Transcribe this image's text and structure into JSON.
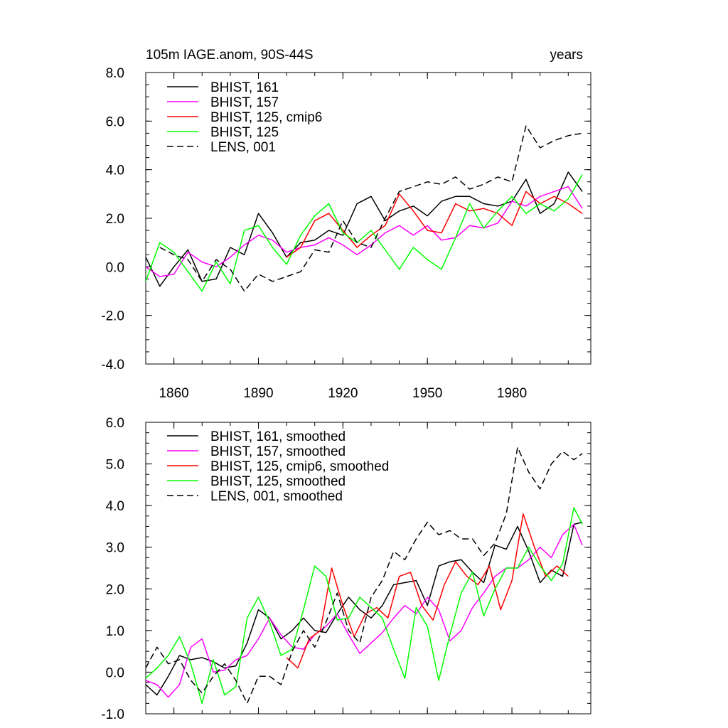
{
  "chart_data": [
    {
      "type": "line",
      "title_left": "105m IAGE.anom, 90S-44S",
      "title_right": "years",
      "xlim": [
        1850,
        2008
      ],
      "ylim": [
        -4.0,
        8.0
      ],
      "yticks": [
        -4.0,
        -2.0,
        0.0,
        2.0,
        4.0,
        6.0,
        8.0
      ],
      "ytick_labels": [
        "-4.0",
        "-2.0",
        "0.0",
        "2.0",
        "4.0",
        "6.0",
        "8.0"
      ],
      "xticks": [
        1860,
        1890,
        1920,
        1950,
        1980
      ],
      "xtick_labels": [
        "1860",
        "1890",
        "1920",
        "1950",
        "1980"
      ],
      "legend_position": "top-left",
      "series": [
        {
          "name": "BHIST, 161",
          "color": "#000000",
          "dash": "solid",
          "x": [
            1850,
            1855,
            1860,
            1865,
            1870,
            1875,
            1880,
            1885,
            1890,
            1895,
            1900,
            1905,
            1910,
            1915,
            1920,
            1925,
            1930,
            1935,
            1940,
            1945,
            1950,
            1955,
            1960,
            1965,
            1970,
            1975,
            1980,
            1985,
            1990,
            1995,
            2000,
            2005
          ],
          "values": [
            0.4,
            -0.8,
            0.0,
            0.7,
            -0.6,
            -0.5,
            0.8,
            0.5,
            2.2,
            1.4,
            0.4,
            1.0,
            1.1,
            1.5,
            1.3,
            2.6,
            2.9,
            1.9,
            2.3,
            2.5,
            2.1,
            2.7,
            2.9,
            2.9,
            2.6,
            2.5,
            2.7,
            3.6,
            2.2,
            2.6,
            3.9,
            3.1
          ]
        },
        {
          "name": "BHIST, 157",
          "color": "#ff00ff",
          "dash": "solid",
          "x": [
            1850,
            1855,
            1860,
            1865,
            1870,
            1875,
            1880,
            1885,
            1890,
            1895,
            1900,
            1905,
            1910,
            1915,
            1920,
            1925,
            1930,
            1935,
            1940,
            1945,
            1950,
            1955,
            1960,
            1965,
            1970,
            1975,
            1980,
            1985,
            1990,
            1995,
            2000,
            2005
          ],
          "values": [
            0.0,
            -0.4,
            -0.3,
            0.6,
            0.2,
            0.0,
            0.4,
            0.9,
            1.3,
            1.1,
            0.6,
            0.8,
            0.9,
            1.2,
            0.9,
            0.5,
            0.9,
            1.4,
            1.7,
            1.3,
            1.7,
            1.1,
            1.2,
            1.7,
            1.6,
            1.8,
            2.7,
            2.5,
            2.9,
            3.1,
            3.3,
            2.4
          ]
        },
        {
          "name": "BHIST, 125, cmip6",
          "color": "#ff0000",
          "dash": "solid",
          "x": [
            1900,
            1905,
            1910,
            1915,
            1920,
            1925,
            1930,
            1935,
            1940,
            1945,
            1950,
            1955,
            1960,
            1965,
            1970,
            1975,
            1980,
            1985,
            1990,
            1995,
            2000,
            2005
          ],
          "values": [
            0.4,
            0.8,
            1.9,
            2.2,
            1.5,
            0.8,
            1.3,
            1.7,
            3.0,
            2.3,
            1.5,
            1.4,
            2.6,
            2.3,
            2.4,
            2.2,
            1.7,
            3.1,
            2.6,
            2.9,
            2.6,
            2.2
          ]
        },
        {
          "name": "BHIST, 125",
          "color": "#00ff00",
          "dash": "solid",
          "x": [
            1850,
            1855,
            1860,
            1865,
            1870,
            1875,
            1880,
            1885,
            1890,
            1895,
            1900,
            1905,
            1910,
            1915,
            1920,
            1925,
            1930,
            1935,
            1940,
            1945,
            1950,
            1955,
            1960,
            1965,
            1970,
            1975,
            1980,
            1985,
            1990,
            1995,
            2000,
            2005
          ],
          "values": [
            -0.6,
            1.0,
            0.6,
            -0.2,
            -1.0,
            0.2,
            -0.7,
            1.5,
            1.7,
            0.8,
            0.1,
            1.3,
            2.1,
            2.6,
            1.4,
            1.0,
            1.5,
            0.7,
            -0.1,
            0.8,
            0.3,
            -0.1,
            1.2,
            2.6,
            1.6,
            2.3,
            2.9,
            2.2,
            2.6,
            2.3,
            2.8,
            3.8
          ]
        },
        {
          "name": "LENS, 001",
          "color": "#000000",
          "dash": "dashed",
          "x": [
            1855,
            1860,
            1865,
            1870,
            1875,
            1880,
            1885,
            1890,
            1895,
            1900,
            1905,
            1910,
            1915,
            1920,
            1925,
            1930,
            1935,
            1940,
            1945,
            1950,
            1955,
            1960,
            1965,
            1970,
            1975,
            1980,
            1985,
            1990,
            1995,
            2000,
            2005
          ],
          "values": [
            0.8,
            0.5,
            0.3,
            -0.6,
            0.3,
            -0.1,
            -1.0,
            -0.3,
            -0.6,
            -0.4,
            -0.2,
            0.7,
            0.6,
            1.9,
            1.0,
            0.8,
            2.0,
            3.1,
            3.3,
            3.5,
            3.4,
            3.7,
            3.2,
            3.4,
            3.7,
            3.5,
            5.8,
            4.9,
            5.2,
            5.4,
            5.5
          ]
        }
      ]
    },
    {
      "type": "line",
      "xlim": [
        1850,
        2008
      ],
      "ylim": [
        -1.0,
        6.0
      ],
      "yticks": [
        -1.0,
        0.0,
        1.0,
        2.0,
        3.0,
        4.0,
        5.0,
        6.0
      ],
      "ytick_labels": [
        "-1.0",
        "0.0",
        "1.0",
        "2.0",
        "3.0",
        "4.0",
        "5.0",
        "6.0"
      ],
      "xticks": [
        1860,
        1890,
        1920,
        1950,
        1980
      ],
      "legend_position": "top-left",
      "series": [
        {
          "name": "BHIST, 161, smoothed",
          "color": "#000000",
          "dash": "solid",
          "x": [
            1850,
            1854,
            1858,
            1862,
            1866,
            1870,
            1874,
            1878,
            1882,
            1886,
            1890,
            1894,
            1898,
            1902,
            1906,
            1910,
            1914,
            1918,
            1922,
            1926,
            1930,
            1934,
            1938,
            1942,
            1946,
            1950,
            1954,
            1958,
            1962,
            1966,
            1970,
            1974,
            1978,
            1982,
            1986,
            1990,
            1994,
            1998,
            2002,
            2005
          ],
          "values": [
            -0.3,
            -0.55,
            -0.1,
            0.4,
            0.3,
            0.35,
            0.25,
            0.1,
            0.15,
            0.7,
            1.5,
            1.3,
            0.8,
            1.0,
            1.3,
            1.0,
            0.95,
            1.4,
            1.8,
            1.5,
            1.3,
            1.6,
            2.1,
            2.15,
            2.2,
            1.6,
            2.55,
            2.65,
            2.7,
            2.4,
            2.15,
            3.05,
            2.95,
            3.5,
            2.9,
            2.15,
            2.45,
            2.3,
            3.55,
            3.6
          ]
        },
        {
          "name": "BHIST, 157, smoothed",
          "color": "#ff00ff",
          "dash": "solid",
          "x": [
            1850,
            1854,
            1858,
            1862,
            1866,
            1870,
            1874,
            1878,
            1882,
            1886,
            1890,
            1894,
            1898,
            1902,
            1906,
            1910,
            1914,
            1918,
            1922,
            1926,
            1930,
            1934,
            1938,
            1942,
            1946,
            1950,
            1954,
            1958,
            1962,
            1966,
            1970,
            1974,
            1978,
            1982,
            1986,
            1990,
            1994,
            1998,
            2002,
            2005
          ],
          "values": [
            -0.2,
            -0.3,
            -0.6,
            -0.3,
            0.6,
            0.8,
            0.0,
            0.05,
            0.3,
            0.4,
            0.8,
            1.3,
            0.9,
            0.6,
            0.55,
            0.9,
            1.1,
            1.4,
            0.9,
            0.45,
            0.7,
            0.95,
            1.3,
            1.6,
            1.4,
            1.8,
            1.5,
            0.75,
            1.0,
            1.55,
            1.9,
            2.3,
            2.5,
            2.5,
            2.7,
            3.0,
            2.75,
            3.3,
            3.55,
            3.05
          ]
        },
        {
          "name": "BHIST, 125, cmip6, smoothed",
          "color": "#ff0000",
          "dash": "solid",
          "x": [
            1900,
            1904,
            1908,
            1912,
            1916,
            1920,
            1924,
            1928,
            1932,
            1936,
            1940,
            1944,
            1948,
            1952,
            1956,
            1960,
            1964,
            1968,
            1972,
            1976,
            1980,
            1984,
            1988,
            1992,
            1996,
            2000
          ],
          "values": [
            0.35,
            0.1,
            0.8,
            1.0,
            2.5,
            1.6,
            0.85,
            1.4,
            1.55,
            1.3,
            2.3,
            2.4,
            1.6,
            1.25,
            2.1,
            2.65,
            2.3,
            2.1,
            2.55,
            1.5,
            2.2,
            3.8,
            3.0,
            2.3,
            2.55,
            2.3
          ]
        },
        {
          "name": "BHIST, 125, smoothed",
          "color": "#00ff00",
          "dash": "solid",
          "x": [
            1850,
            1854,
            1858,
            1862,
            1866,
            1870,
            1874,
            1878,
            1882,
            1886,
            1890,
            1894,
            1898,
            1902,
            1906,
            1910,
            1914,
            1918,
            1922,
            1926,
            1930,
            1934,
            1938,
            1942,
            1946,
            1950,
            1954,
            1958,
            1962,
            1966,
            1970,
            1974,
            1978,
            1982,
            1986,
            1990,
            1994,
            1998,
            2002,
            2005
          ],
          "values": [
            -0.15,
            0.1,
            0.4,
            0.85,
            0.2,
            -0.75,
            0.3,
            -0.55,
            -0.35,
            1.3,
            1.8,
            1.2,
            0.4,
            0.55,
            1.5,
            2.55,
            2.3,
            1.25,
            1.3,
            1.8,
            1.55,
            1.3,
            0.55,
            -0.15,
            1.55,
            1.1,
            -0.2,
            0.9,
            1.9,
            2.4,
            1.35,
            2.0,
            2.5,
            2.5,
            3.0,
            2.55,
            2.2,
            2.6,
            3.95,
            3.55
          ]
        },
        {
          "name": "LENS, 001, smoothed",
          "color": "#000000",
          "dash": "dashed",
          "x": [
            1850,
            1854,
            1858,
            1862,
            1866,
            1870,
            1874,
            1878,
            1882,
            1886,
            1890,
            1894,
            1898,
            1902,
            1906,
            1910,
            1914,
            1918,
            1922,
            1926,
            1930,
            1934,
            1938,
            1942,
            1946,
            1950,
            1954,
            1958,
            1962,
            1966,
            1970,
            1974,
            1978,
            1982,
            1986,
            1990,
            1994,
            1998,
            2002,
            2005
          ],
          "values": [
            0.1,
            0.6,
            0.2,
            0.3,
            -0.2,
            -0.5,
            -0.1,
            0.2,
            -0.2,
            -0.75,
            -0.1,
            -0.1,
            -0.3,
            0.5,
            1.0,
            0.6,
            1.2,
            1.9,
            1.0,
            0.7,
            1.8,
            2.2,
            2.9,
            2.7,
            3.2,
            3.6,
            3.3,
            3.4,
            3.2,
            3.2,
            2.8,
            3.1,
            3.8,
            5.4,
            4.8,
            4.4,
            5.0,
            5.3,
            5.1,
            5.25
          ]
        }
      ]
    }
  ]
}
